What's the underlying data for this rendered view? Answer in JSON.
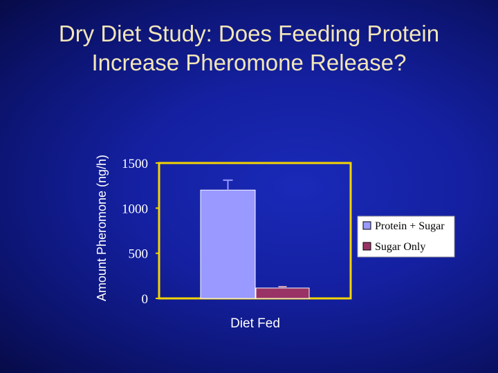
{
  "slide": {
    "title_line1": "Dry Diet Study:  Does Feeding Protein",
    "title_line2": "Increase Pheromone Release?"
  },
  "colors": {
    "title": "#f2e6b8",
    "plot_border": "#f5d400",
    "protein_sugar": "#9999ff",
    "sugar_only": "#993366"
  },
  "chart_data": {
    "type": "bar",
    "title": "",
    "xlabel": "Diet Fed",
    "ylabel": "Amount Pheromone (ng/h)",
    "ylim": [
      0,
      1500
    ],
    "yticks": [
      0,
      500,
      1000,
      1500
    ],
    "legend_position": "right",
    "categories": [
      "Diet Fed"
    ],
    "series": [
      {
        "name": "Protein + Sugar",
        "values": [
          1200
        ],
        "error": [
          110
        ]
      },
      {
        "name": "Sugar Only",
        "values": [
          115
        ],
        "error": [
          15
        ]
      }
    ]
  }
}
